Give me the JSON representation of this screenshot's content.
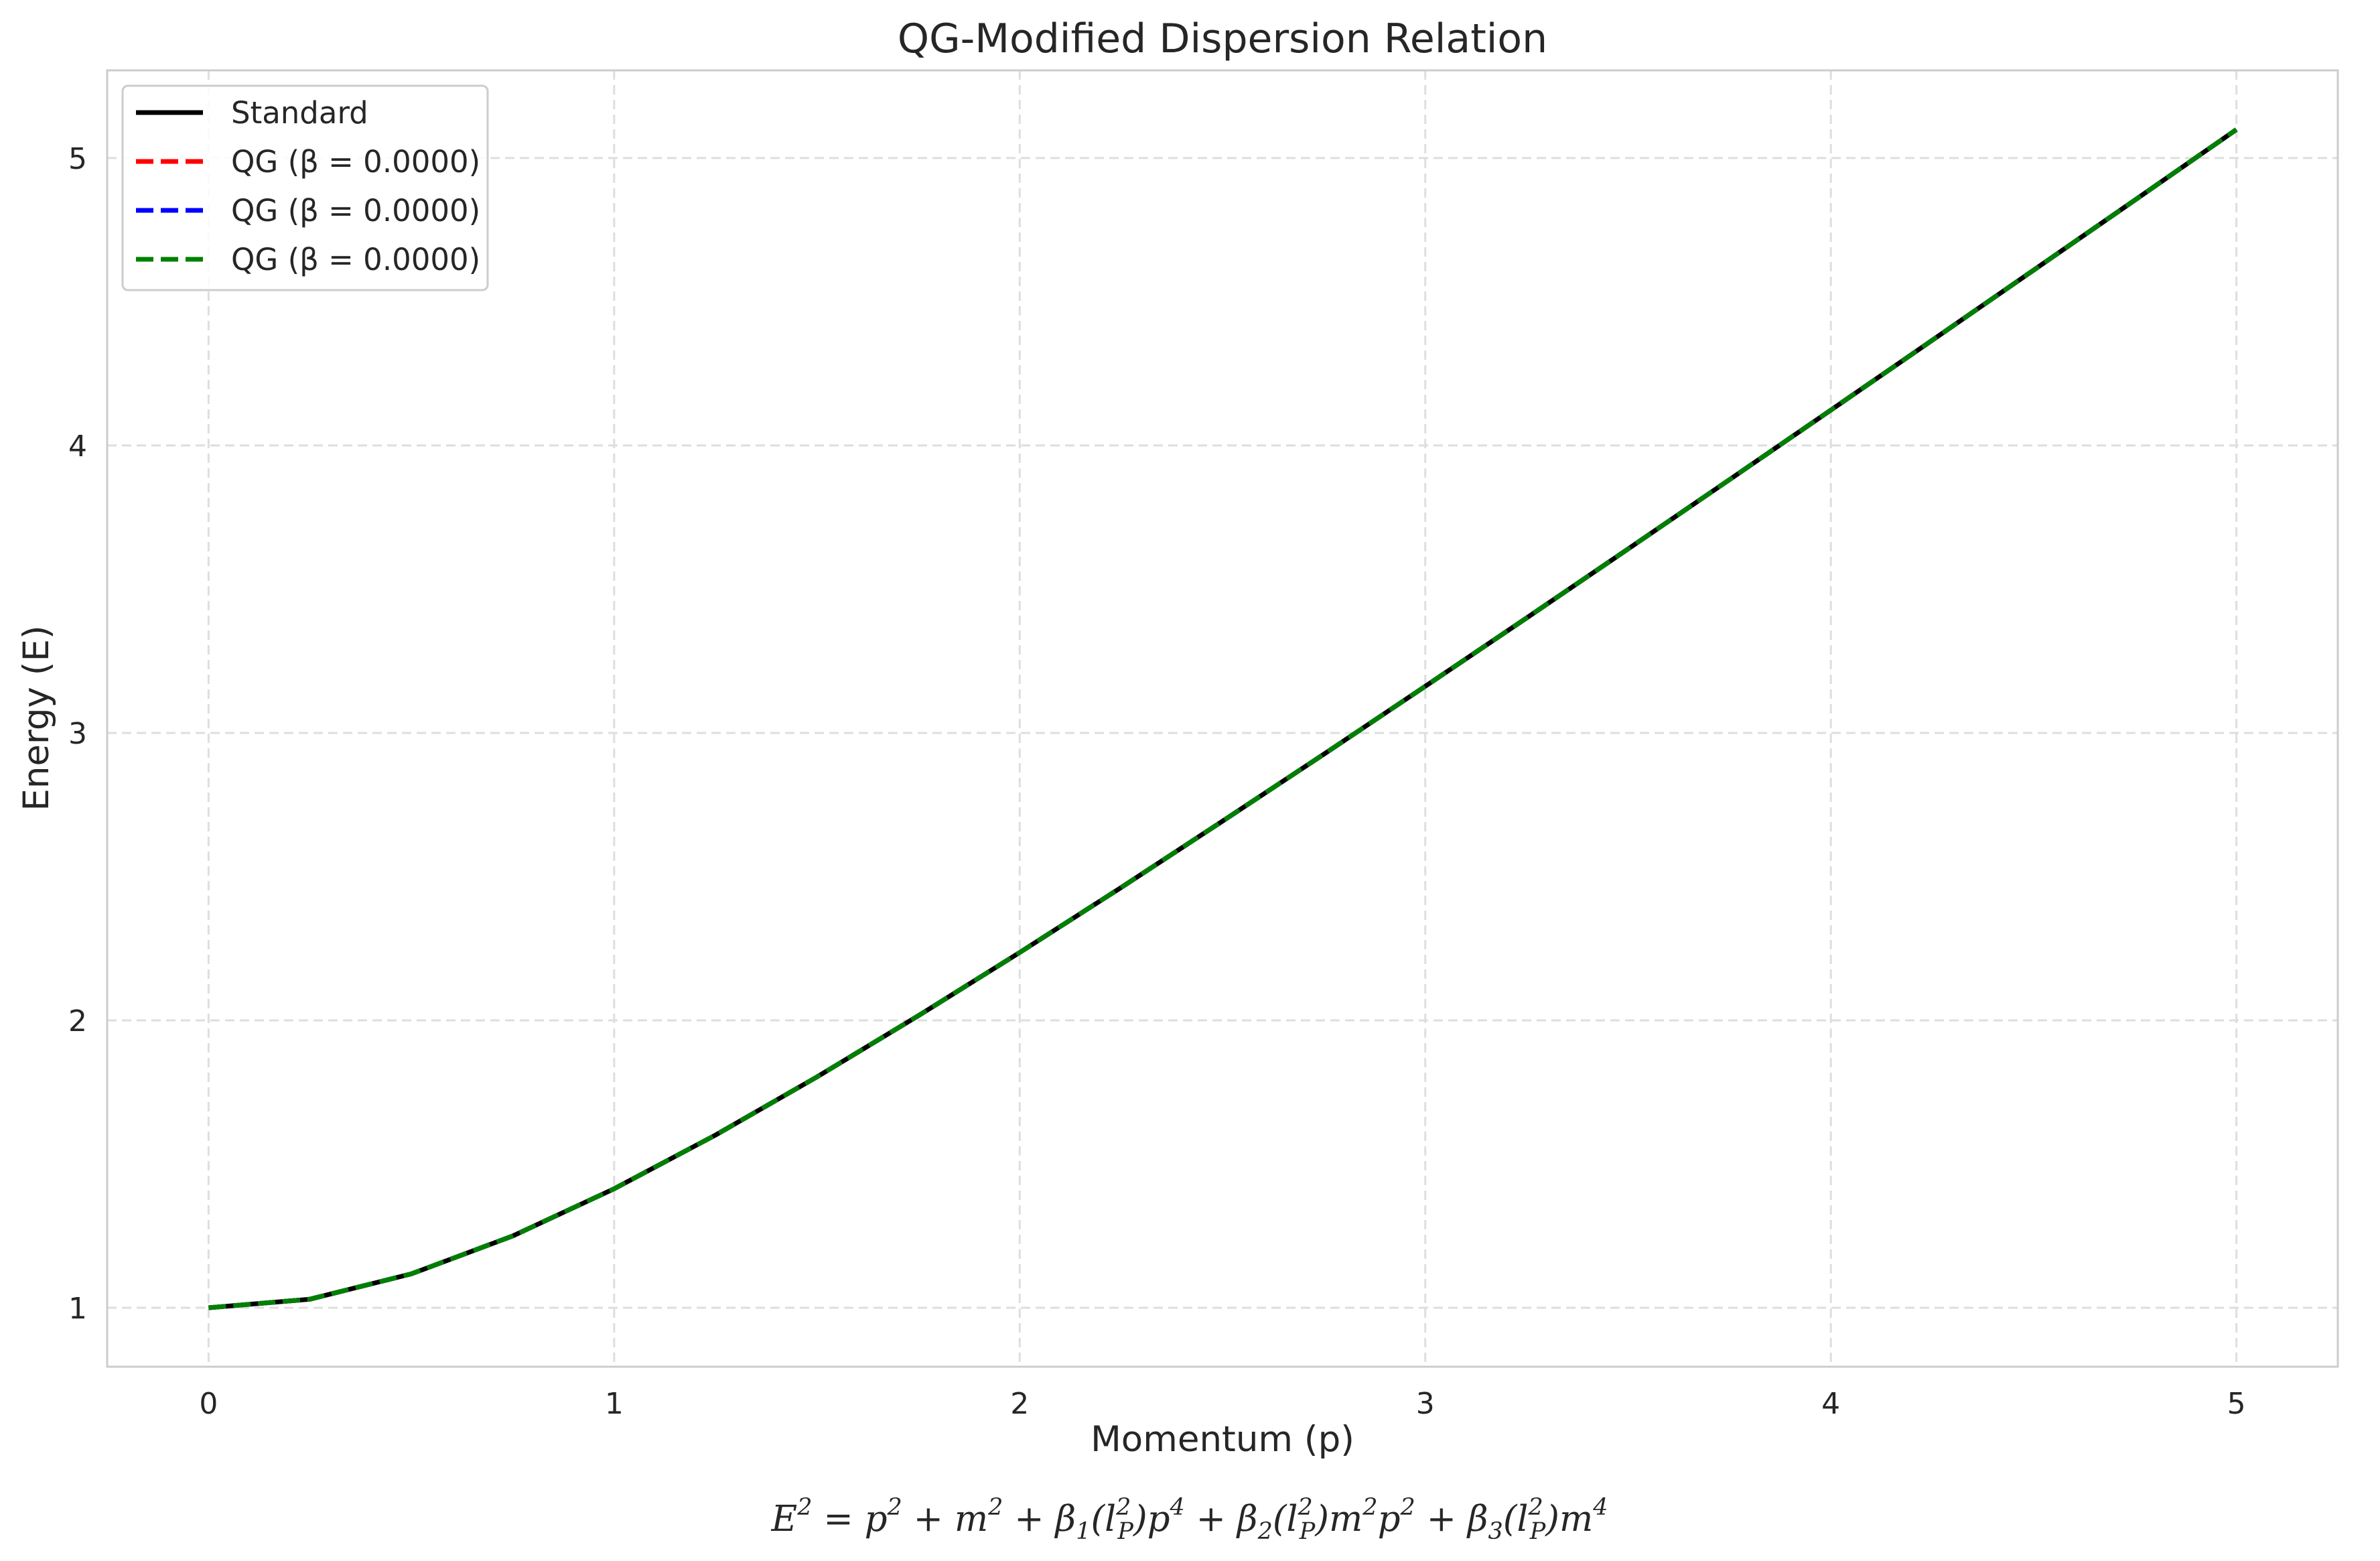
{
  "chart_data": {
    "type": "line",
    "title": "QG-Modified Dispersion Relation",
    "xlabel": "Momentum (p)",
    "ylabel": "Energy (E)",
    "xlim": [
      -0.25,
      5.25
    ],
    "ylim": [
      0.795,
      5.305
    ],
    "xticks": [
      0,
      1,
      2,
      3,
      4,
      5
    ],
    "yticks": [
      1,
      2,
      3,
      4,
      5
    ],
    "xtick_labels": [
      "0",
      "1",
      "2",
      "3",
      "4",
      "5"
    ],
    "ytick_labels": [
      "1",
      "2",
      "3",
      "4",
      "5"
    ],
    "grid": true,
    "legend_position": "upper-left",
    "x": [
      0,
      0.25,
      0.5,
      0.75,
      1.0,
      1.25,
      1.5,
      1.75,
      2.0,
      2.25,
      2.5,
      2.75,
      3.0,
      3.25,
      3.5,
      3.75,
      4.0,
      4.25,
      4.5,
      4.75,
      5.0
    ],
    "series": [
      {
        "name": "Standard",
        "color": "#000000",
        "style": "solid",
        "values": [
          1.0,
          1.03,
          1.118,
          1.25,
          1.414,
          1.601,
          1.803,
          2.016,
          2.236,
          2.462,
          2.693,
          2.926,
          3.162,
          3.4,
          3.64,
          3.881,
          4.123,
          4.366,
          4.61,
          4.854,
          5.099
        ]
      },
      {
        "name": "QG (β = 0.0000)",
        "color": "#ff0000",
        "style": "dashed",
        "values": [
          1.0,
          1.03,
          1.118,
          1.25,
          1.414,
          1.601,
          1.803,
          2.016,
          2.236,
          2.462,
          2.693,
          2.926,
          3.162,
          3.4,
          3.64,
          3.881,
          4.123,
          4.366,
          4.61,
          4.854,
          5.099
        ]
      },
      {
        "name": "QG (β = 0.0000)",
        "color": "#0000ff",
        "style": "dashed",
        "values": [
          1.0,
          1.03,
          1.118,
          1.25,
          1.414,
          1.601,
          1.803,
          2.016,
          2.236,
          2.462,
          2.693,
          2.926,
          3.162,
          3.4,
          3.64,
          3.881,
          4.123,
          4.366,
          4.61,
          4.854,
          5.099
        ]
      },
      {
        "name": "QG (β = 0.0000)",
        "color": "#008000",
        "style": "dashed",
        "values": [
          1.0,
          1.03,
          1.118,
          1.25,
          1.414,
          1.601,
          1.803,
          2.016,
          2.236,
          2.462,
          2.693,
          2.926,
          3.162,
          3.4,
          3.64,
          3.881,
          4.123,
          4.366,
          4.61,
          4.854,
          5.099
        ]
      }
    ],
    "annotation": "E^2 = p^2 + m^2 + β_1(l_P^2)p^4 + β_2(l_P^2)m^2p^2 + β_3(l_P^2)m^4"
  },
  "formula": {
    "t1": "E",
    "s1": "2",
    "t2": " = p",
    "s2": "2",
    "t3": " + m",
    "s3": "2",
    "t4": " + β",
    "d1": "1",
    "t5": "(l",
    "s4": "2",
    "d2": "P",
    "t6": ")p",
    "s5": "4",
    "t7": " + β",
    "d3": "2",
    "t8": "(l",
    "s6": "2",
    "d4": "P",
    "t9": ")m",
    "s7": "2",
    "t10": "p",
    "s8": "2",
    "t11": " + β",
    "d5": "3",
    "t12": "(l",
    "s9": "2",
    "d6": "P",
    "t13": ")m",
    "s10": "4"
  }
}
